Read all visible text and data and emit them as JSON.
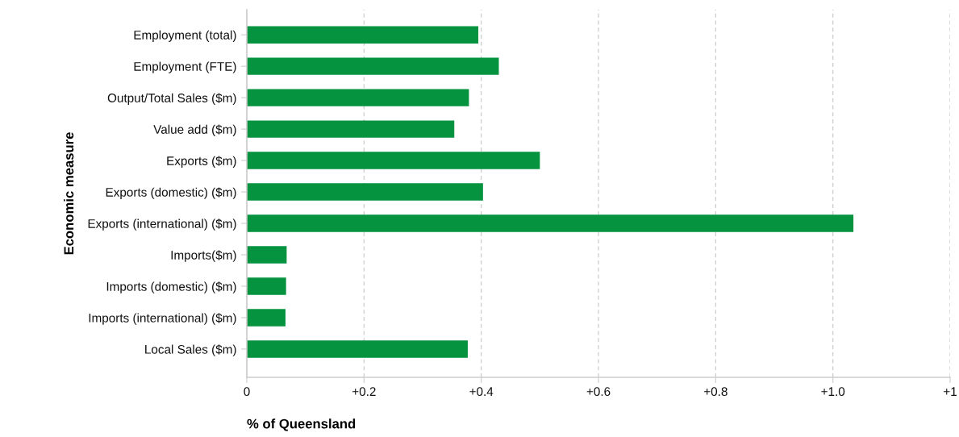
{
  "chart_data": {
    "type": "bar",
    "orientation": "horizontal",
    "xlabel": "% of Queensland",
    "ylabel": "Economic measure",
    "categories": [
      "Employment (total)",
      "Employment (FTE)",
      "Output/Total Sales ($m)",
      "Value add ($m)",
      "Exports ($m)",
      "Exports (domestic) ($m)",
      "Exports (international) ($m)",
      "Imports($m)",
      "Imports (domestic) ($m)",
      "Imports (international) ($m)",
      "Local Sales ($m)"
    ],
    "values": [
      0.395,
      0.43,
      0.379,
      0.354,
      0.5,
      0.403,
      1.035,
      0.068,
      0.067,
      0.066,
      0.377
    ],
    "color": "#05933f",
    "xlim": [
      0,
      1.2
    ],
    "xticks": [
      0,
      {
        "value": 0.2,
        "label": "+0.2"
      },
      {
        "value": 0.4,
        "label": "+0.4"
      },
      {
        "value": 0.6,
        "label": "+0.6"
      },
      {
        "value": 0.8,
        "label": "+0.8"
      },
      {
        "value": 1.0,
        "label": "+1.0"
      },
      {
        "value": 1.2,
        "label": "+1"
      }
    ],
    "grid": "x"
  }
}
